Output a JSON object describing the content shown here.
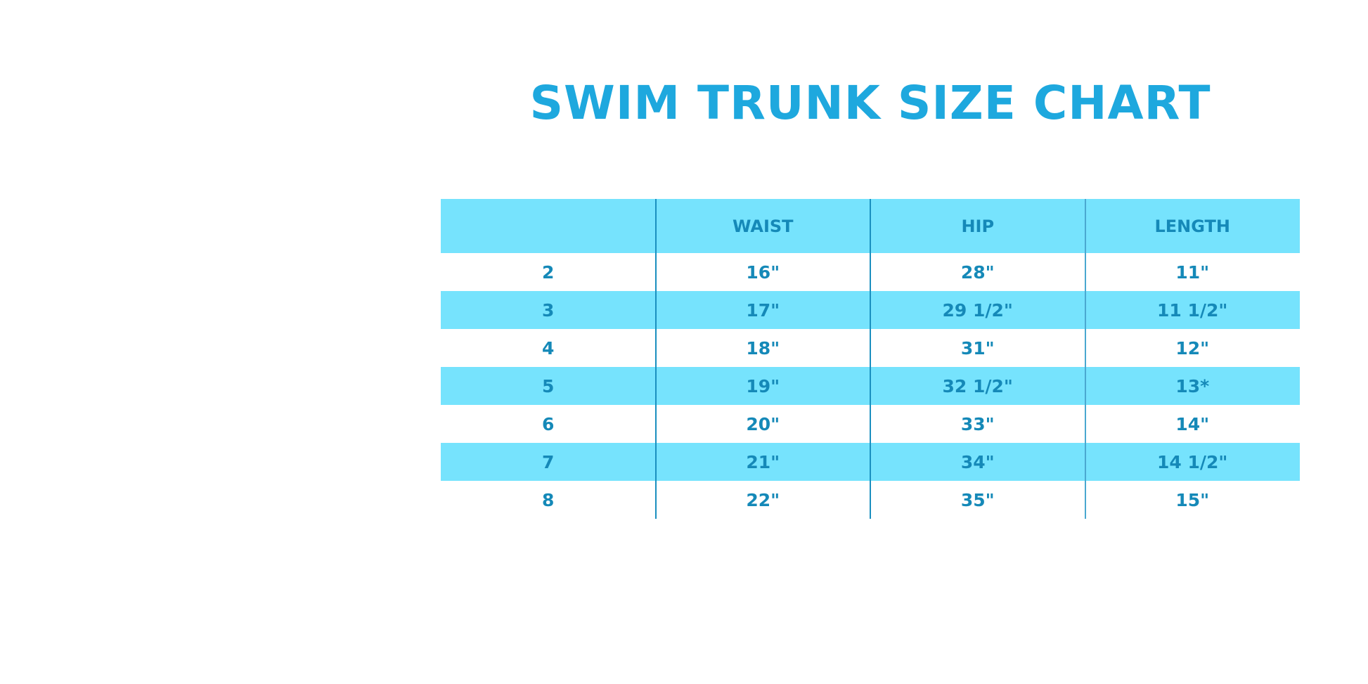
{
  "title": "SWIM TRUNK SIZE CHART",
  "colors": {
    "title": "#1ea8de",
    "text": "#1589b8",
    "shade": "#76e3fd"
  },
  "headers": [
    "",
    "WAIST",
    "HIP",
    "LENGTH"
  ],
  "rows": [
    [
      "2",
      "16\"",
      "28\"",
      "11\""
    ],
    [
      "3",
      "17\"",
      "29 1/2\"",
      "11 1/2\""
    ],
    [
      "4",
      "18\"",
      "31\"",
      "12\""
    ],
    [
      "5",
      "19\"",
      "32 1/2\"",
      "13*"
    ],
    [
      "6",
      "20\"",
      "33\"",
      "14\""
    ],
    [
      "7",
      "21\"",
      "34\"",
      "14 1/2\""
    ],
    [
      "8",
      "22\"",
      "35\"",
      "15\""
    ]
  ]
}
